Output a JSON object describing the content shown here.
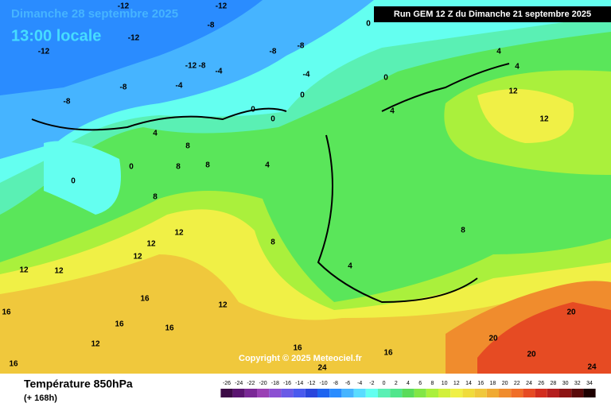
{
  "header": {
    "date": "Dimanche 28 septembre 2025",
    "time": "13:00 locale",
    "run": "Run GEM 12 Z du Dimanche 21 septembre 2025"
  },
  "copyright": "Copyright © 2025 Meteociel.fr",
  "footer": {
    "title": "Température 850hPa",
    "lead": "(+ 168h)"
  },
  "color_scale": {
    "labels": [
      -26,
      -24,
      -22,
      -20,
      -18,
      -16,
      -14,
      -12,
      -10,
      -8,
      -6,
      -4,
      -2,
      0,
      2,
      4,
      6,
      8,
      10,
      12,
      14,
      16,
      18,
      20,
      22,
      24,
      26,
      28,
      30,
      32,
      34
    ],
    "colors": [
      "#3c0a46",
      "#5a1470",
      "#7a2896",
      "#9a40b4",
      "#8c50d2",
      "#6a5ae6",
      "#4a5aee",
      "#2a46dc",
      "#1e64f0",
      "#2a8cff",
      "#46b4ff",
      "#5adcff",
      "#64fff0",
      "#5af0b4",
      "#50e68c",
      "#5adc5a",
      "#82e646",
      "#aaf03c",
      "#d2f03c",
      "#f0f046",
      "#f0dc3c",
      "#f0c83c",
      "#f0aa32",
      "#f08c2d",
      "#f06e28",
      "#e64b23",
      "#d22d1e",
      "#b41e1e",
      "#8c1414",
      "#5a0a0a",
      "#1e0000"
    ]
  },
  "contour_labels": [
    -12,
    -12,
    -12,
    -12,
    -8,
    -8,
    -8,
    -12,
    -8,
    -4,
    -4,
    -8,
    -4,
    -8,
    0,
    0,
    0,
    0,
    0,
    4,
    4,
    4,
    0,
    0,
    4,
    8,
    8,
    8,
    8,
    4,
    12,
    12,
    12,
    12,
    12,
    12,
    12,
    8,
    4,
    16,
    16,
    16,
    16,
    16,
    16,
    20,
    20,
    20,
    24,
    24,
    12,
    8,
    16,
    12
  ]
}
